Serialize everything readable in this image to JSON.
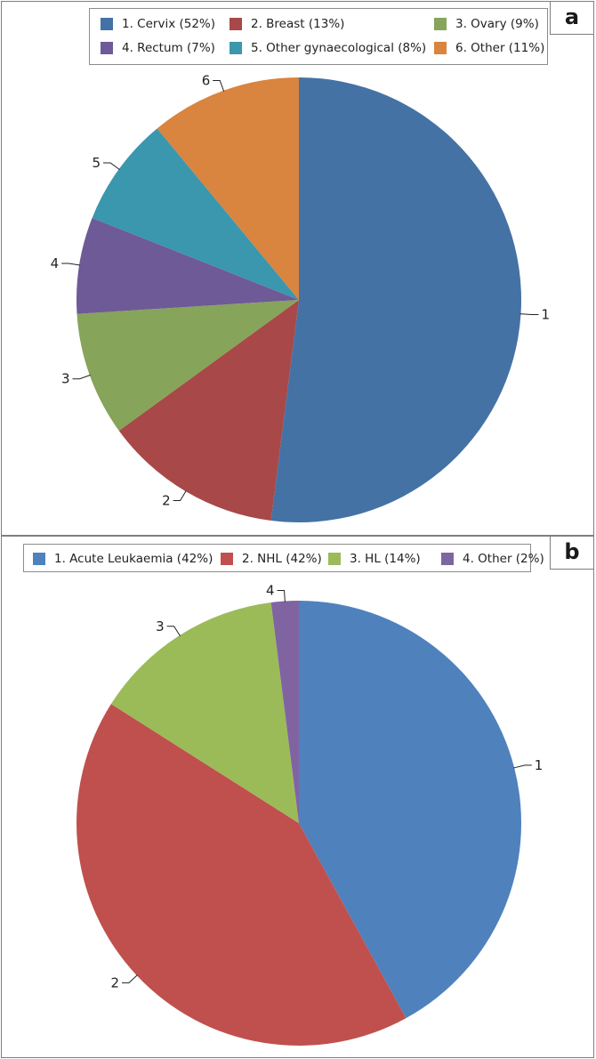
{
  "panels": [
    {
      "letter": "a",
      "legend": [
        "1. Cervix (52%)",
        "2. Breast (13%)",
        "3. Ovary (9%)",
        "4. Rectum (7%)",
        "5. Other gynaecological (8%)",
        "6. Other (11%)"
      ]
    },
    {
      "letter": "b",
      "legend": [
        "1. Acute Leukaemia (42%)",
        "2. NHL (42%)",
        "3. HL (14%)",
        "4. Other (2%)"
      ]
    }
  ],
  "chart_data": [
    {
      "type": "pie",
      "title": "",
      "legend_position": "top",
      "categories": [
        "Cervix",
        "Breast",
        "Ovary",
        "Rectum",
        "Other gynaecological",
        "Other"
      ],
      "slice_labels": [
        "1",
        "2",
        "3",
        "4",
        "5",
        "6"
      ],
      "values": [
        52,
        13,
        9,
        7,
        8,
        11
      ],
      "colors": [
        "#4472a4",
        "#a84848",
        "#86a45a",
        "#6e5a96",
        "#3a97ad",
        "#d9843f"
      ]
    },
    {
      "type": "pie",
      "title": "",
      "legend_position": "top",
      "categories": [
        "Acute Leukaemia",
        "NHL",
        "HL",
        "Other"
      ],
      "slice_labels": [
        "1",
        "2",
        "3",
        "4"
      ],
      "values": [
        42,
        42,
        14,
        2
      ],
      "colors": [
        "#4f81bd",
        "#c0504d",
        "#9bbb59",
        "#8064a2"
      ]
    }
  ]
}
